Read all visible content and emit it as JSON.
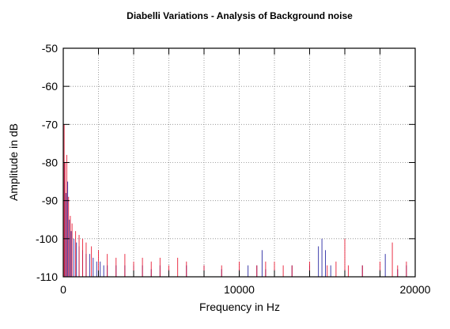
{
  "chart_data": {
    "type": "line",
    "title": "Diabelli Variations - Analysis of Background noise",
    "xlabel": "Frequency in Hz",
    "ylabel": "Amplitude in dB",
    "xlim": [
      0,
      20000
    ],
    "ylim": [
      -110,
      -50
    ],
    "x_ticks": [
      0,
      10000,
      20000
    ],
    "x_tick_labels": [
      "0",
      "10000",
      "20000"
    ],
    "y_ticks": [
      -50,
      -60,
      -70,
      -80,
      -90,
      -100,
      -110
    ],
    "y_tick_labels": [
      "-50",
      "-60",
      "-70",
      "-80",
      "-90",
      "-100",
      "-110"
    ],
    "grid": true,
    "legend": "none",
    "series": [
      {
        "color": "#1c1c9e",
        "x": [
          0,
          80,
          150,
          250,
          350,
          450,
          600,
          750,
          900,
          1100,
          1300,
          1500,
          1700,
          1900,
          2100,
          2300,
          2500,
          3000,
          3500,
          4000,
          4500,
          5000,
          5500,
          6000,
          7000,
          8000,
          9000,
          10000,
          10500,
          11000,
          11300,
          11500,
          12000,
          13000,
          14000,
          14500,
          14700,
          14900,
          15200,
          16000,
          17000,
          18000,
          18300,
          19000,
          19500,
          20000
        ],
        "y": [
          -92,
          -80,
          -88,
          -85,
          -95,
          -98,
          -100,
          -101,
          -102,
          -103,
          -104,
          -104,
          -105,
          -106,
          -106,
          -107,
          -107,
          -107,
          -107,
          -107,
          -107,
          -108,
          -107,
          -108,
          -107,
          -107,
          -108,
          -108,
          -107,
          -107,
          -103,
          -108,
          -108,
          -107,
          -107,
          -102,
          -100,
          -103,
          -107,
          -108,
          -107,
          -108,
          -104,
          -108,
          -107,
          -106
        ]
      },
      {
        "color": "#e8102a",
        "x": [
          0,
          50,
          100,
          200,
          300,
          400,
          500,
          700,
          900,
          1100,
          1300,
          1600,
          2000,
          2500,
          3000,
          3500,
          4000,
          4500,
          5000,
          5500,
          6000,
          6500,
          7000,
          8000,
          9000,
          10000,
          11000,
          11500,
          12000,
          12500,
          13000,
          14000,
          15000,
          15500,
          16000,
          16200,
          17000,
          18000,
          18700,
          19000,
          19500,
          20000
        ],
        "y": [
          -80,
          -70,
          -80,
          -78,
          -89,
          -94,
          -96,
          -98,
          -99,
          -100,
          -101,
          -102,
          -103,
          -104,
          -105,
          -104,
          -106,
          -105,
          -106,
          -105,
          -107,
          -105,
          -106,
          -107,
          -107,
          -106,
          -107,
          -106,
          -106,
          -107,
          -107,
          -106,
          -107,
          -106,
          -100,
          -107,
          -107,
          -106,
          -101,
          -107,
          -106,
          -102
        ]
      }
    ]
  }
}
